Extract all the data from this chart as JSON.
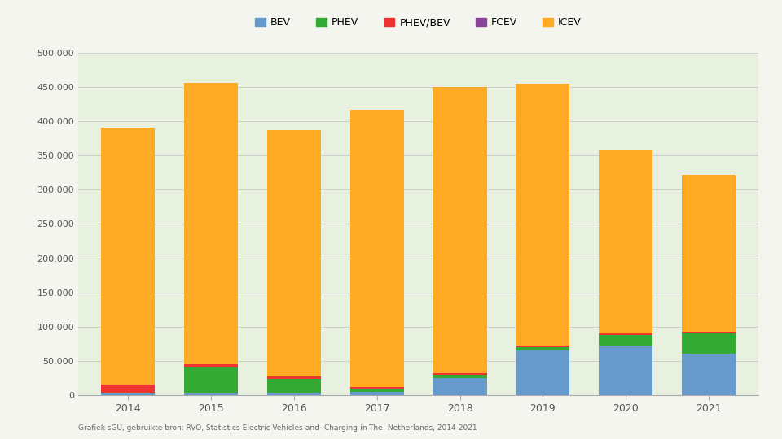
{
  "years": [
    "2014",
    "2015",
    "2016",
    "2017",
    "2018",
    "2019",
    "2020",
    "2021"
  ],
  "BEV": [
    3500,
    3500,
    3000,
    5000,
    25000,
    65000,
    73000,
    60000
  ],
  "PHEV": [
    0,
    37000,
    21000,
    5000,
    5000,
    5000,
    15000,
    30000
  ],
  "PHEV_BEV": [
    12000,
    5000,
    3000,
    2000,
    2000,
    2000,
    2000,
    2000
  ],
  "FCEV": [
    0,
    0,
    0,
    0,
    0,
    0,
    0,
    0
  ],
  "ICEV": [
    375000,
    410000,
    360000,
    405000,
    418000,
    383000,
    268000,
    230000
  ],
  "colors": {
    "BEV": "#6699cc",
    "PHEV": "#33aa33",
    "PHEV_BEV": "#ee3333",
    "FCEV": "#884499",
    "ICEV": "#ffaa22"
  },
  "legend_labels": {
    "BEV": "BEV",
    "PHEV": "PHEV",
    "PHEV_BEV": "PHEV/BEV",
    "FCEV": "FCEV",
    "ICEV": "ICEV"
  },
  "ylim": [
    0,
    500000
  ],
  "yticks": [
    0,
    50000,
    100000,
    150000,
    200000,
    250000,
    300000,
    350000,
    400000,
    450000,
    500000
  ],
  "ytick_labels": [
    "0",
    "50.000",
    "100.000",
    "150.000",
    "200.000",
    "250.000",
    "300.000",
    "350.000",
    "400.000",
    "450.000",
    "500.000"
  ],
  "outer_bg_color": "#f5f5f0",
  "plot_bg_color": "#e8f0e0",
  "footer_text": "Grafiek sGU, gebruikte bron: RVO, Statistics-Electric-Vehicles-and- Charging-in-The -Netherlands, 2014-2021",
  "bar_width": 0.65,
  "grid_color": "#cccccc",
  "legend_order": [
    "BEV",
    "PHEV",
    "PHEV_BEV",
    "FCEV",
    "ICEV"
  ]
}
